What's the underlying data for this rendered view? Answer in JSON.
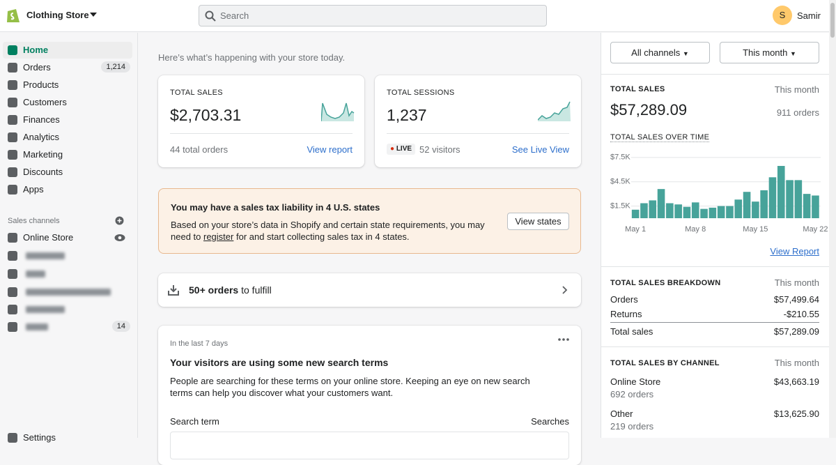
{
  "topbar": {
    "store": "Clothing Store",
    "search": "Search",
    "avatar": "S",
    "user": "Samir"
  },
  "nav": {
    "items": [
      {
        "label": "Home"
      },
      {
        "label": "Orders",
        "badge": "1,214"
      },
      {
        "label": "Products"
      },
      {
        "label": "Customers"
      },
      {
        "label": "Finances"
      },
      {
        "label": "Analytics"
      },
      {
        "label": "Marketing"
      },
      {
        "label": "Discounts"
      },
      {
        "label": "Apps"
      }
    ],
    "sales_channels_title": "Sales channels",
    "online_store": "Online Store",
    "other_channel_badge": "14",
    "settings": "Settings"
  },
  "main": {
    "greeting": "Here’s what’s happening with your store today.",
    "sales_card": {
      "label": "TOTAL SALES",
      "value": "$2,703.31",
      "sub": "44 total orders",
      "link": "View report"
    },
    "sessions_card": {
      "label": "TOTAL SESSIONS",
      "value": "1,237",
      "live": "LIVE",
      "sub": "52 visitors",
      "link": "See Live View"
    },
    "tax_banner": {
      "title": "You may have a sales tax liability in 4 U.S. states",
      "text_before": "Based on your store’s data in Shopify and certain state requirements, you may need to ",
      "link": "register",
      "text_after": " for and start collecting sales tax in 4 states.",
      "button": "View states"
    },
    "fulfill": {
      "bold": "50+ orders",
      "rest": " to fulfill"
    },
    "search_terms": {
      "period": "In the last 7 days",
      "title": "Your visitors are using some new search terms",
      "body": "People are searching for these terms on your online store. Keeping an eye on new search terms can help you discover what your customers want.",
      "col_term": "Search term",
      "col_searches": "Searches"
    }
  },
  "panel": {
    "channel_button": "All channels",
    "period_button": "This month",
    "total_sales": {
      "label": "TOTAL SALES",
      "period": "This month",
      "value": "$57,289.09",
      "orders": "911 orders"
    },
    "view_report": "View Report",
    "breakdown": {
      "title": "TOTAL SALES BREAKDOWN",
      "period": "This month",
      "rows": [
        [
          "Orders",
          "$57,499.64"
        ],
        [
          "Returns",
          "-$210.55"
        ],
        [
          "Total sales",
          "$57,289.09"
        ]
      ]
    },
    "by_channel": {
      "title": "TOTAL SALES BY CHANNEL",
      "period": "This month",
      "rows": [
        {
          "name": "Online Store",
          "orders": "692 orders",
          "value": "$43,663.19"
        },
        {
          "name": "Other",
          "orders": "219 orders",
          "value": "$13,625.90"
        }
      ]
    }
  },
  "chart_data": {
    "type": "bar",
    "title": "TOTAL SALES OVER TIME",
    "categories": [
      "May 1",
      null,
      null,
      null,
      null,
      null,
      null,
      "May 8",
      null,
      null,
      null,
      null,
      null,
      null,
      "May 15",
      null,
      null,
      null,
      null,
      null,
      null,
      "May 22"
    ],
    "values": [
      1050,
      1850,
      2200,
      3600,
      1850,
      1700,
      1400,
      1950,
      1150,
      1300,
      1500,
      1500,
      2300,
      3250,
      2050,
      3450,
      5050,
      6450,
      4700,
      4700,
      3000,
      2800
    ],
    "color": "#47a39a",
    "ylim": [
      0,
      8000
    ],
    "yticks": [
      {
        "value": 1500,
        "label": "$1.5K"
      },
      {
        "value": 4500,
        "label": "$4.5K"
      },
      {
        "value": 7500,
        "label": "$7.5K"
      }
    ],
    "grid": true
  }
}
